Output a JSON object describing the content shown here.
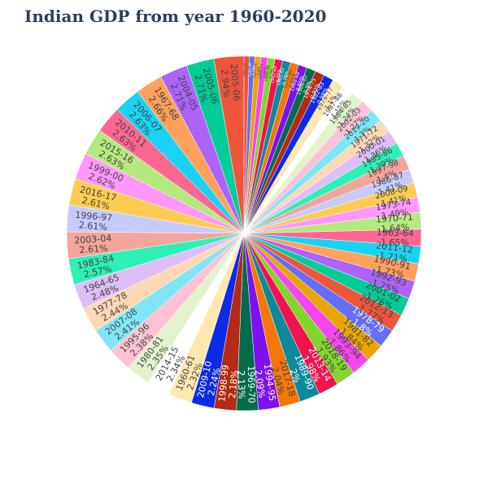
{
  "title": "Indian GDP from year 1960-2020",
  "chart_data": {
    "type": "pie",
    "title": "Indian GDP from year 1960-2020",
    "value_unit": "percent of total",
    "slices": [
      {
        "label": "2005-06",
        "value": 2.94,
        "color": "#EF553B"
      },
      {
        "label": "2005-06",
        "value": 2.71,
        "color": "#00CC96"
      },
      {
        "label": "2004-05",
        "value": 2.71,
        "color": "#AB63FA"
      },
      {
        "label": "1967-68",
        "value": 2.66,
        "color": "#FFA15A"
      },
      {
        "label": "2006-07",
        "value": 2.63,
        "color": "#19D3F3"
      },
      {
        "label": "2010-11",
        "value": 2.63,
        "color": "#FF6692"
      },
      {
        "label": "2015-16",
        "value": 2.63,
        "color": "#B6E880"
      },
      {
        "label": "1999-00",
        "value": 2.62,
        "color": "#FF97FF"
      },
      {
        "label": "2016-17",
        "value": 2.61,
        "color": "#FECB52"
      },
      {
        "label": "1996-97",
        "value": 2.61,
        "color": "#C6CAFD"
      },
      {
        "label": "2003-04",
        "value": 2.61,
        "color": "#F4A49A"
      },
      {
        "label": "1983-84",
        "value": 2.57,
        "color": "#2EF0B4"
      },
      {
        "label": "1964-65",
        "value": 2.48,
        "color": "#DDBEF6"
      },
      {
        "label": "1977-78",
        "value": 2.44,
        "color": "#FED7B4"
      },
      {
        "label": "2007-08",
        "value": 2.41,
        "color": "#7FE6F8"
      },
      {
        "label": "1995-96",
        "value": 2.38,
        "color": "#FFC1D3"
      },
      {
        "label": "1980-81",
        "value": 2.35,
        "color": "#E2F3CC"
      },
      {
        "label": "2014-15",
        "value": 2.34,
        "color": "#FFFFFF"
      },
      {
        "label": "1960-61",
        "value": 2.32,
        "color": "#FFE7B0"
      },
      {
        "label": "2009-10",
        "value": 2.24,
        "color": "#0D2BE6"
      },
      {
        "label": "1998-99",
        "value": 2.18,
        "color": "#B42A16"
      },
      {
        "label": "1969-70",
        "value": 2.13,
        "color": "#066B4C"
      },
      {
        "label": "1994-95",
        "value": 2.09,
        "color": "#7D12EE"
      },
      {
        "label": "2017-18",
        "value": 2.04,
        "color": "#F47706"
      },
      {
        "label": "1989-90",
        "value": 2,
        "color": "#0C8A9C"
      },
      {
        "label": "2013-14",
        "value": 1.98,
        "color": "#F2134E"
      },
      {
        "label": "2018-19",
        "value": 1.93,
        "color": "#82D430"
      },
      {
        "label": "1993-94",
        "value": 1.86,
        "color": "#F545F0"
      },
      {
        "label": "1981-82",
        "value": 1.84,
        "color": "#E8A600"
      },
      {
        "label": "1978-79",
        "value": 1.8,
        "color": "#636EFA"
      },
      {
        "label": "2012-13",
        "value": 1.77,
        "color": "#EF553B"
      },
      {
        "label": "2001-02",
        "value": 1.76,
        "color": "#00CC96"
      },
      {
        "label": "1992-93",
        "value": 1.75,
        "color": "#AB63FA"
      },
      {
        "label": "1990-91",
        "value": 1.73,
        "color": "#FFA15A"
      },
      {
        "label": "2011-12",
        "value": 1.71,
        "color": "#19D3F3"
      },
      {
        "label": "1963-64",
        "value": 1.65,
        "color": "#FF6692"
      },
      {
        "label": "1970-71",
        "value": 1.64,
        "color": "#B6E880"
      },
      {
        "label": "1973-74",
        "value": 1.49,
        "color": "#FF97FF"
      },
      {
        "label": "2008-09",
        "value": 1.41,
        "color": "#FECB52"
      },
      {
        "label": "1986-87",
        "value": 1.41,
        "color": "#C6CAFD"
      },
      {
        "label": "1997-98",
        "value": 1.4,
        "color": "#F4A49A"
      },
      {
        "label": "1985-86",
        "value": 1.39,
        "color": "#2EF0B4"
      },
      {
        "label": "2000-01",
        "value": 1.36,
        "color": "#DDBEF6"
      },
      {
        "label": "1971-72",
        "value": 1.32,
        "color": "#FED7B4"
      },
      {
        "label": "2019-20",
        "value": 1.3,
        "color": "#7FE6F8"
      },
      {
        "label": "2002-03",
        "value": 1.27,
        "color": "#FFC1D3"
      },
      {
        "label": "1984-85",
        "value": 1.24,
        "color": "#E2F3CC"
      },
      {
        "label": "1987-88",
        "value": 1.15,
        "color": "#FFFFFF"
      },
      {
        "label": "1976-77",
        "value": 1.1,
        "color": "#FFE7B0"
      },
      {
        "label": "1982-83",
        "value": 0.98,
        "color": "#0D2BE6"
      },
      {
        "label": "1974-75",
        "value": 0.92,
        "color": "#B42A16"
      },
      {
        "label": "1966-67",
        "value": 0.9,
        "color": "#066B4C"
      },
      {
        "label": "1968-69",
        "value": 0.85,
        "color": "#7D12EE"
      },
      {
        "label": "1979-80",
        "value": 0.82,
        "color": "#F47706"
      },
      {
        "label": "1961-62",
        "value": 0.78,
        "color": "#0C8A9C"
      },
      {
        "label": "1962-63",
        "value": 0.75,
        "color": "#F2134E"
      },
      {
        "label": "1965-66",
        "value": 0.7,
        "color": "#82D430"
      },
      {
        "label": "1972-73",
        "value": 0.66,
        "color": "#F545F0"
      },
      {
        "label": "1975-76",
        "value": 0.6,
        "color": "#E8A600"
      },
      {
        "label": "1988-89",
        "value": 0.55,
        "color": "#636EFA"
      },
      {
        "label": "1991-92",
        "value": 0.5,
        "color": "#EF553B"
      }
    ]
  }
}
